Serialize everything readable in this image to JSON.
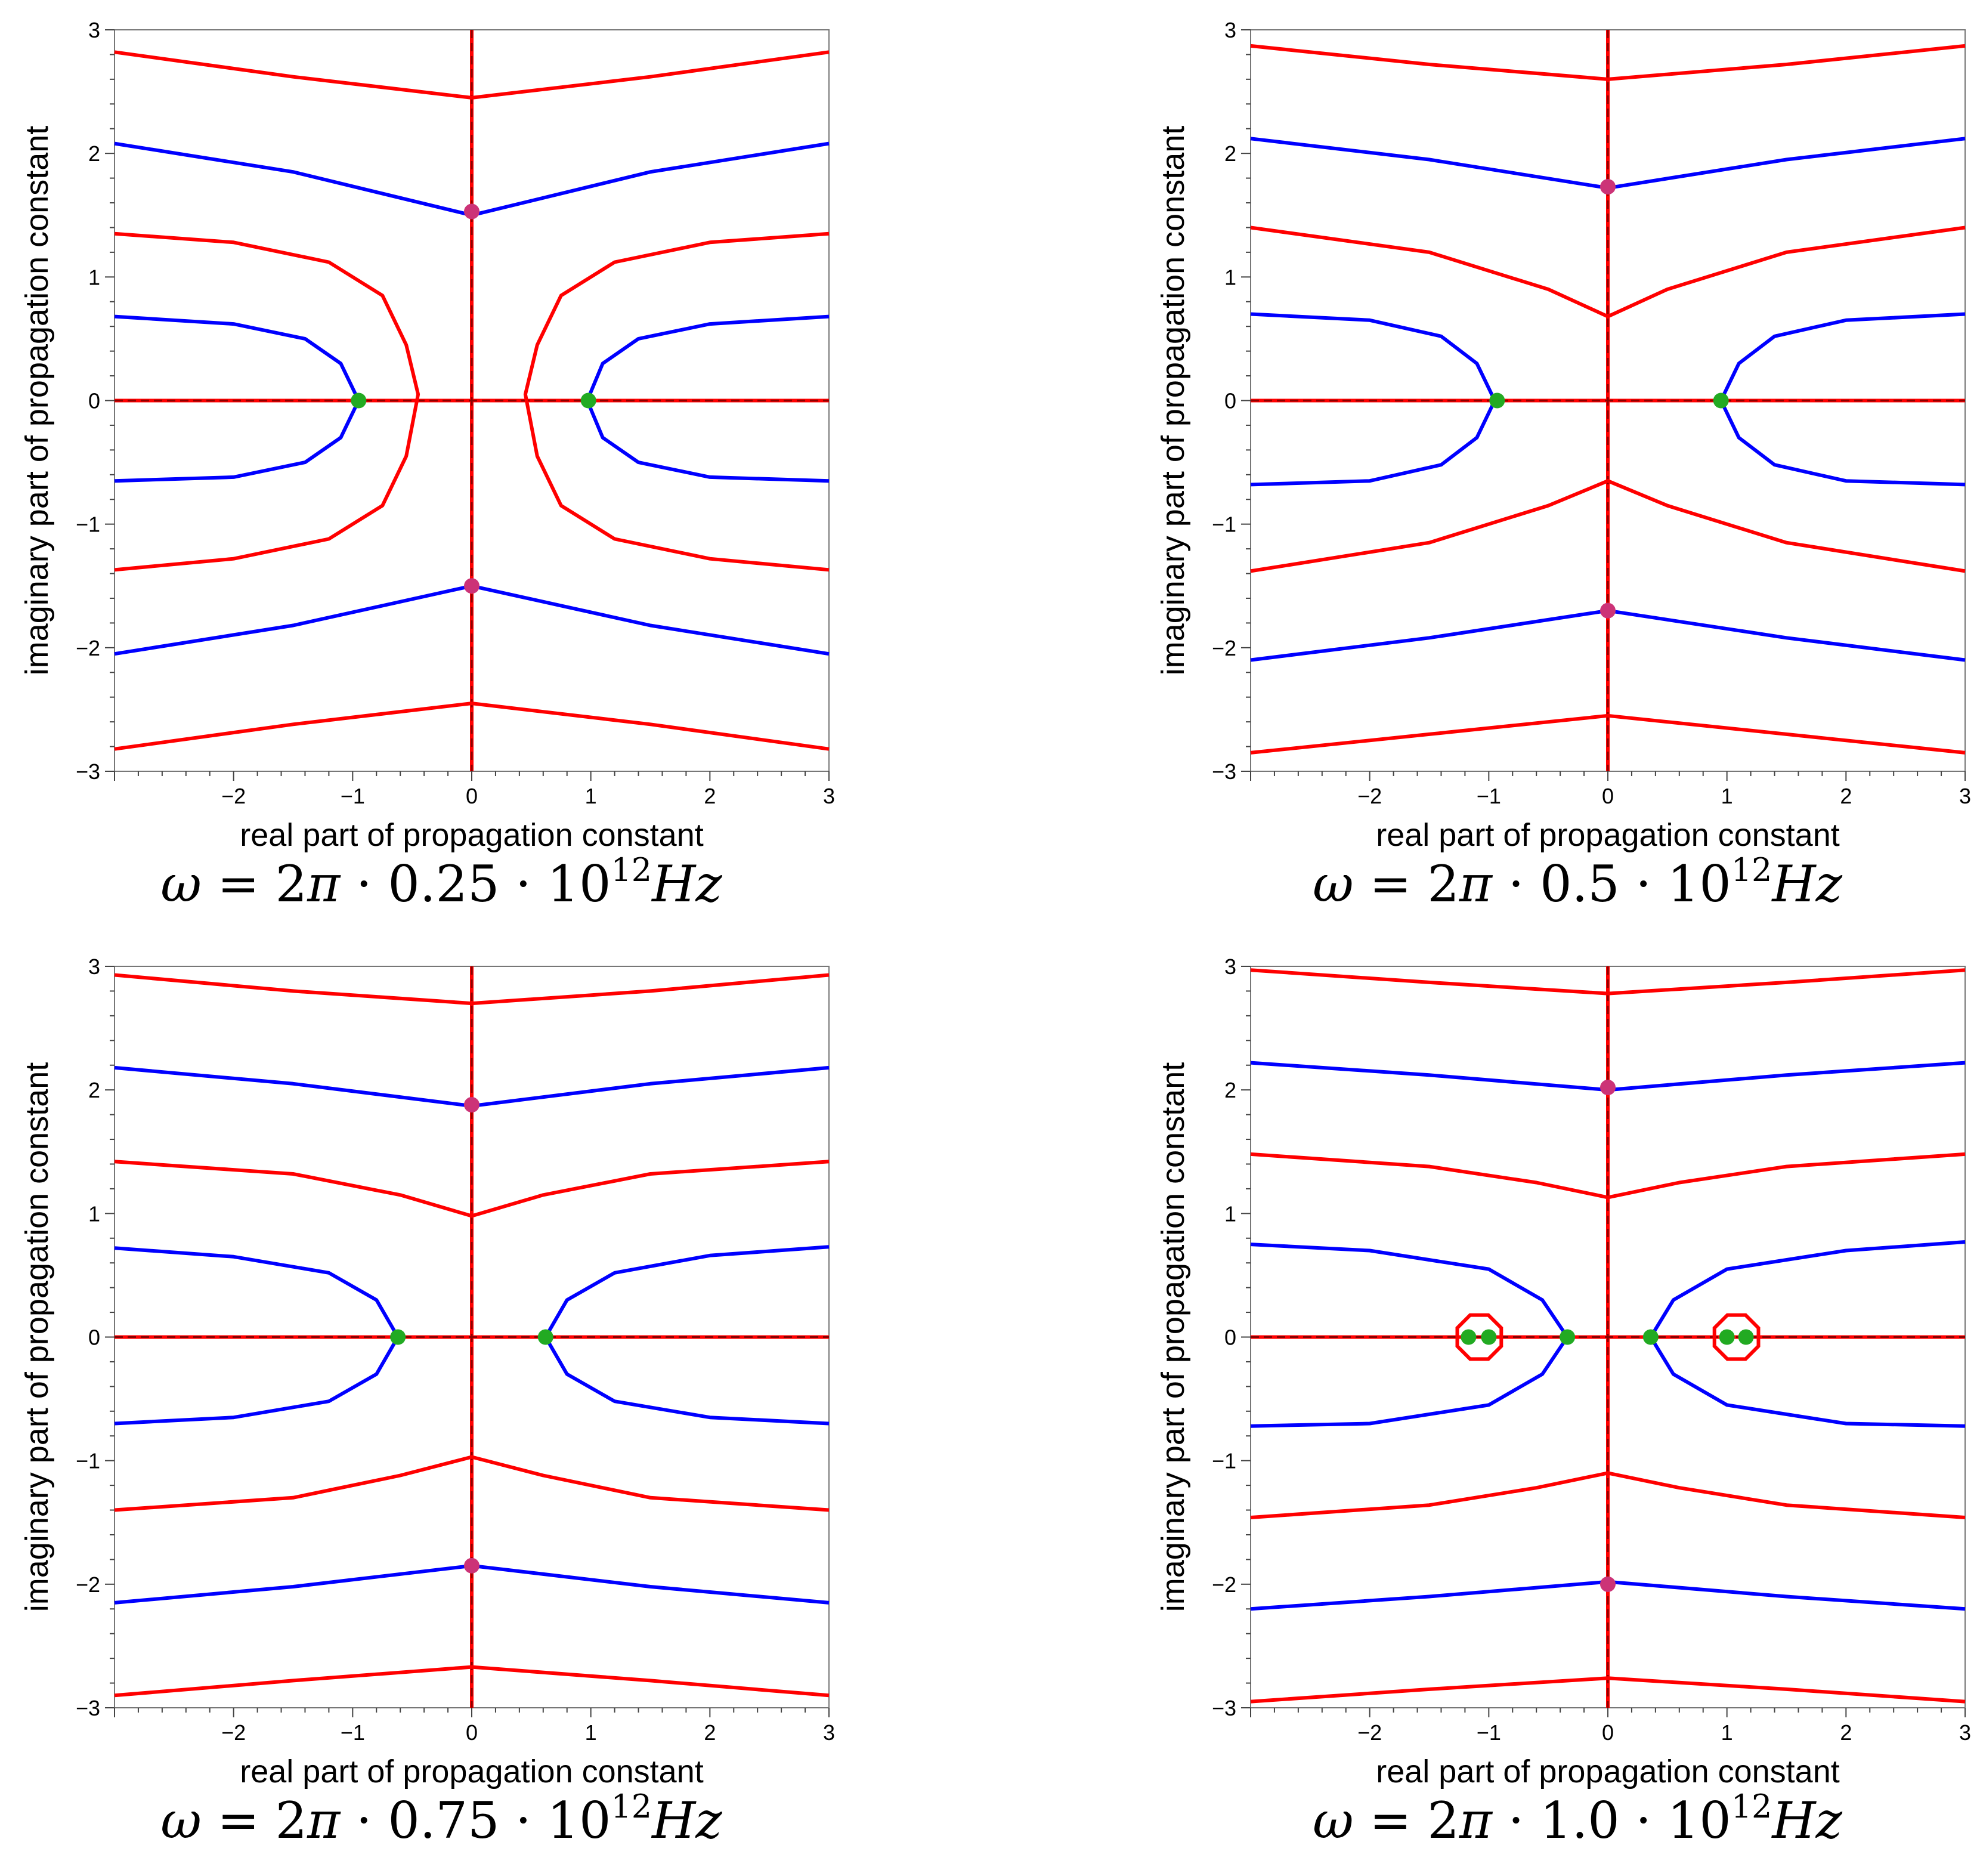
{
  "colors": {
    "red_contour": "#ff0000",
    "blue_contour": "#0000ff",
    "zero_marker": "#22aa22",
    "pole_marker": "#cc3377",
    "axis_line": "#8b0000",
    "dash": "#000000"
  },
  "chart_data": [
    {
      "type": "contour",
      "xlabel": "real part of propagation constant",
      "ylabel": "imaginary part of propagation constant",
      "xlim": [
        -3,
        3
      ],
      "ylim": [
        -3,
        3
      ],
      "xticks": [
        "−2",
        "−1",
        "0",
        "1",
        "2",
        "3"
      ],
      "yticks": [
        "3",
        "2",
        "1",
        "0",
        "−1",
        "−2",
        "−3"
      ],
      "caption": {
        "omega": "ω",
        "eq": "= 2",
        "pi": "π",
        "mid": "· 0.25 · 10",
        "exp": "12",
        "unit": "Hz"
      },
      "red_lines": [
        [
          [
            -3,
            2.82
          ],
          [
            -1.5,
            2.62
          ],
          [
            0,
            2.45
          ],
          [
            1.5,
            2.62
          ],
          [
            3,
            2.82
          ]
        ],
        [
          [
            -3,
            -2.82
          ],
          [
            -1.5,
            -2.62
          ],
          [
            0,
            -2.45
          ],
          [
            1.5,
            -2.62
          ],
          [
            3,
            -2.82
          ]
        ],
        [
          [
            -3,
            1.35
          ],
          [
            -2,
            1.28
          ],
          [
            -1.2,
            1.12
          ],
          [
            -0.75,
            0.85
          ],
          [
            -0.55,
            0.45
          ],
          [
            -0.45,
            0.05
          ],
          [
            -0.55,
            -0.45
          ],
          [
            -0.75,
            -0.85
          ],
          [
            -1.2,
            -1.12
          ],
          [
            -2,
            -1.28
          ],
          [
            -3,
            -1.37
          ]
        ],
        [
          [
            3,
            1.35
          ],
          [
            2,
            1.28
          ],
          [
            1.2,
            1.12
          ],
          [
            0.75,
            0.85
          ],
          [
            0.55,
            0.45
          ],
          [
            0.45,
            0.05
          ],
          [
            0.55,
            -0.45
          ],
          [
            0.75,
            -0.85
          ],
          [
            1.2,
            -1.12
          ],
          [
            2,
            -1.28
          ],
          [
            3,
            -1.37
          ]
        ]
      ],
      "blue_lines": [
        [
          [
            -3,
            2.08
          ],
          [
            -1.5,
            1.85
          ],
          [
            0,
            1.5
          ],
          [
            1.5,
            1.85
          ],
          [
            3,
            2.08
          ]
        ],
        [
          [
            -3,
            -2.05
          ],
          [
            -1.5,
            -1.82
          ],
          [
            0,
            -1.5
          ],
          [
            1.5,
            -1.82
          ],
          [
            3,
            -2.05
          ]
        ],
        [
          [
            -3,
            0.68
          ],
          [
            -2,
            0.62
          ],
          [
            -1.4,
            0.5
          ],
          [
            -1.1,
            0.3
          ],
          [
            -0.95,
            0
          ],
          [
            -1.1,
            -0.3
          ],
          [
            -1.4,
            -0.5
          ],
          [
            -2,
            -0.62
          ],
          [
            -3,
            -0.65
          ]
        ],
        [
          [
            3,
            0.68
          ],
          [
            2,
            0.62
          ],
          [
            1.4,
            0.5
          ],
          [
            1.1,
            0.3
          ],
          [
            0.97,
            0
          ],
          [
            1.1,
            -0.3
          ],
          [
            1.4,
            -0.5
          ],
          [
            2,
            -0.62
          ],
          [
            3,
            -0.65
          ]
        ]
      ],
      "zeros": [
        [
          -0.95,
          0
        ],
        [
          0.98,
          0
        ]
      ],
      "poles": [
        [
          0,
          1.53
        ],
        [
          0,
          -1.5
        ]
      ],
      "rings": []
    },
    {
      "type": "contour",
      "xlabel": "real part of propagation constant",
      "ylabel": "imaginary part of propagation constant",
      "xlim": [
        -3,
        3
      ],
      "ylim": [
        -3,
        3
      ],
      "xticks": [
        "−2",
        "−1",
        "0",
        "1",
        "2",
        "3"
      ],
      "yticks": [
        "3",
        "2",
        "1",
        "0",
        "−1",
        "−2",
        "−3"
      ],
      "caption": {
        "omega": "ω",
        "eq": "= 2",
        "pi": "π",
        "mid": "· 0.5 · 10",
        "exp": "12",
        "unit": "Hz"
      },
      "red_lines": [
        [
          [
            -3,
            2.87
          ],
          [
            -1.5,
            2.72
          ],
          [
            0,
            2.6
          ],
          [
            1.5,
            2.72
          ],
          [
            3,
            2.87
          ]
        ],
        [
          [
            -3,
            -2.85
          ],
          [
            -1.5,
            -2.7
          ],
          [
            0,
            -2.55
          ],
          [
            1.5,
            -2.7
          ],
          [
            3,
            -2.85
          ]
        ],
        [
          [
            -3,
            1.4
          ],
          [
            -1.5,
            1.2
          ],
          [
            -0.5,
            0.9
          ],
          [
            0,
            0.68
          ],
          [
            0.5,
            0.9
          ],
          [
            1.5,
            1.2
          ],
          [
            3,
            1.4
          ]
        ],
        [
          [
            -3,
            -1.38
          ],
          [
            -1.5,
            -1.15
          ],
          [
            -0.5,
            -0.85
          ],
          [
            0,
            -0.65
          ],
          [
            0.5,
            -0.85
          ],
          [
            1.5,
            -1.15
          ],
          [
            3,
            -1.38
          ]
        ]
      ],
      "blue_lines": [
        [
          [
            -3,
            2.12
          ],
          [
            -1.5,
            1.95
          ],
          [
            0,
            1.72
          ],
          [
            1.5,
            1.95
          ],
          [
            3,
            2.12
          ]
        ],
        [
          [
            -3,
            -2.1
          ],
          [
            -1.5,
            -1.92
          ],
          [
            0,
            -1.7
          ],
          [
            1.5,
            -1.92
          ],
          [
            3,
            -2.1
          ]
        ],
        [
          [
            -3,
            0.7
          ],
          [
            -2,
            0.65
          ],
          [
            -1.4,
            0.52
          ],
          [
            -1.1,
            0.3
          ],
          [
            -0.95,
            0
          ],
          [
            -1.1,
            -0.3
          ],
          [
            -1.4,
            -0.52
          ],
          [
            -2,
            -0.65
          ],
          [
            -3,
            -0.68
          ]
        ],
        [
          [
            3,
            0.7
          ],
          [
            2,
            0.65
          ],
          [
            1.4,
            0.52
          ],
          [
            1.1,
            0.3
          ],
          [
            0.95,
            0
          ],
          [
            1.1,
            -0.3
          ],
          [
            1.4,
            -0.52
          ],
          [
            2,
            -0.65
          ],
          [
            3,
            -0.68
          ]
        ]
      ],
      "zeros": [
        [
          -0.93,
          0
        ],
        [
          0.95,
          0
        ]
      ],
      "poles": [
        [
          0,
          1.73
        ],
        [
          0,
          -1.7
        ]
      ],
      "rings": []
    },
    {
      "type": "contour",
      "xlabel": "real part of propagation constant",
      "ylabel": "imaginary part of propagation constant",
      "xlim": [
        -3,
        3
      ],
      "ylim": [
        -3,
        3
      ],
      "xticks": [
        "−2",
        "−1",
        "0",
        "1",
        "2",
        "3"
      ],
      "yticks": [
        "3",
        "2",
        "1",
        "0",
        "−1",
        "−2",
        "−3"
      ],
      "caption": {
        "omega": "ω",
        "eq": "= 2",
        "pi": "π",
        "mid": "· 0.75 · 10",
        "exp": "12",
        "unit": "Hz"
      },
      "red_lines": [
        [
          [
            -3,
            2.93
          ],
          [
            -1.5,
            2.8
          ],
          [
            0,
            2.7
          ],
          [
            1.5,
            2.8
          ],
          [
            3,
            2.93
          ]
        ],
        [
          [
            -3,
            -2.9
          ],
          [
            -1.5,
            -2.78
          ],
          [
            0,
            -2.67
          ],
          [
            1.5,
            -2.78
          ],
          [
            3,
            -2.9
          ]
        ],
        [
          [
            -3,
            1.42
          ],
          [
            -1.5,
            1.32
          ],
          [
            -0.6,
            1.15
          ],
          [
            0,
            0.98
          ],
          [
            0.6,
            1.15
          ],
          [
            1.5,
            1.32
          ],
          [
            3,
            1.42
          ]
        ],
        [
          [
            -3,
            -1.4
          ],
          [
            -1.5,
            -1.3
          ],
          [
            -0.6,
            -1.12
          ],
          [
            0,
            -0.97
          ],
          [
            0.6,
            -1.12
          ],
          [
            1.5,
            -1.3
          ],
          [
            3,
            -1.4
          ]
        ]
      ],
      "blue_lines": [
        [
          [
            -3,
            2.18
          ],
          [
            -1.5,
            2.05
          ],
          [
            0,
            1.87
          ],
          [
            1.5,
            2.05
          ],
          [
            3,
            2.18
          ]
        ],
        [
          [
            -3,
            -2.15
          ],
          [
            -1.5,
            -2.02
          ],
          [
            0,
            -1.85
          ],
          [
            1.5,
            -2.02
          ],
          [
            3,
            -2.15
          ]
        ],
        [
          [
            -3,
            0.72
          ],
          [
            -2,
            0.65
          ],
          [
            -1.2,
            0.52
          ],
          [
            -0.8,
            0.3
          ],
          [
            -0.62,
            0
          ],
          [
            -0.8,
            -0.3
          ],
          [
            -1.2,
            -0.52
          ],
          [
            -2,
            -0.65
          ],
          [
            -3,
            -0.7
          ]
        ],
        [
          [
            3,
            0.73
          ],
          [
            2,
            0.66
          ],
          [
            1.2,
            0.52
          ],
          [
            0.8,
            0.3
          ],
          [
            0.62,
            0
          ],
          [
            0.8,
            -0.3
          ],
          [
            1.2,
            -0.52
          ],
          [
            2,
            -0.65
          ],
          [
            3,
            -0.7
          ]
        ]
      ],
      "zeros": [
        [
          -0.62,
          0
        ],
        [
          0.62,
          0
        ]
      ],
      "poles": [
        [
          0,
          1.88
        ],
        [
          0,
          -1.85
        ]
      ],
      "rings": []
    },
    {
      "type": "contour",
      "xlabel": "real part of propagation constant",
      "ylabel": "imaginary part of propagation constant",
      "xlim": [
        -3,
        3
      ],
      "ylim": [
        -3,
        3
      ],
      "xticks": [
        "−2",
        "−1",
        "0",
        "1",
        "2",
        "3"
      ],
      "yticks": [
        "3",
        "2",
        "1",
        "0",
        "−1",
        "−2",
        "−3"
      ],
      "caption": {
        "omega": "ω",
        "eq": "= 2",
        "pi": "π",
        "mid": "· 1.0 · 10",
        "exp": "12",
        "unit": "Hz"
      },
      "red_lines": [
        [
          [
            -3,
            2.97
          ],
          [
            -1.5,
            2.87
          ],
          [
            0,
            2.78
          ],
          [
            1.5,
            2.87
          ],
          [
            3,
            2.97
          ]
        ],
        [
          [
            -3,
            -2.95
          ],
          [
            -1.5,
            -2.85
          ],
          [
            0,
            -2.76
          ],
          [
            1.5,
            -2.85
          ],
          [
            3,
            -2.95
          ]
        ],
        [
          [
            -3,
            1.48
          ],
          [
            -1.5,
            1.38
          ],
          [
            -0.6,
            1.25
          ],
          [
            0,
            1.13
          ],
          [
            0.6,
            1.25
          ],
          [
            1.5,
            1.38
          ],
          [
            3,
            1.48
          ]
        ],
        [
          [
            -3,
            -1.46
          ],
          [
            -1.5,
            -1.36
          ],
          [
            -0.6,
            -1.22
          ],
          [
            0,
            -1.1
          ],
          [
            0.6,
            -1.22
          ],
          [
            1.5,
            -1.36
          ],
          [
            3,
            -1.46
          ]
        ]
      ],
      "blue_lines": [
        [
          [
            -3,
            2.22
          ],
          [
            -1.5,
            2.12
          ],
          [
            0,
            2.0
          ],
          [
            1.5,
            2.12
          ],
          [
            3,
            2.22
          ]
        ],
        [
          [
            -3,
            -2.2
          ],
          [
            -1.5,
            -2.1
          ],
          [
            0,
            -1.98
          ],
          [
            1.5,
            -2.1
          ],
          [
            3,
            -2.2
          ]
        ],
        [
          [
            -3,
            0.75
          ],
          [
            -2,
            0.7
          ],
          [
            -1,
            0.55
          ],
          [
            -0.55,
            0.3
          ],
          [
            -0.34,
            0
          ],
          [
            -0.55,
            -0.3
          ],
          [
            -1,
            -0.55
          ],
          [
            -2,
            -0.7
          ],
          [
            -3,
            -0.72
          ]
        ],
        [
          [
            3,
            0.77
          ],
          [
            2,
            0.7
          ],
          [
            1,
            0.55
          ],
          [
            0.55,
            0.3
          ],
          [
            0.36,
            0
          ],
          [
            0.55,
            -0.3
          ],
          [
            1,
            -0.55
          ],
          [
            2,
            -0.7
          ],
          [
            3,
            -0.72
          ]
        ]
      ],
      "zeros": [
        [
          -1.17,
          0
        ],
        [
          -1.0,
          0
        ],
        [
          -0.34,
          0
        ],
        [
          0.36,
          0
        ],
        [
          1.0,
          0
        ],
        [
          1.16,
          0
        ]
      ],
      "poles": [
        [
          0,
          2.02
        ],
        [
          0,
          -2.0
        ]
      ],
      "rings": [
        [
          -1.08,
          0,
          0.2
        ],
        [
          1.08,
          0,
          0.2
        ]
      ]
    }
  ]
}
